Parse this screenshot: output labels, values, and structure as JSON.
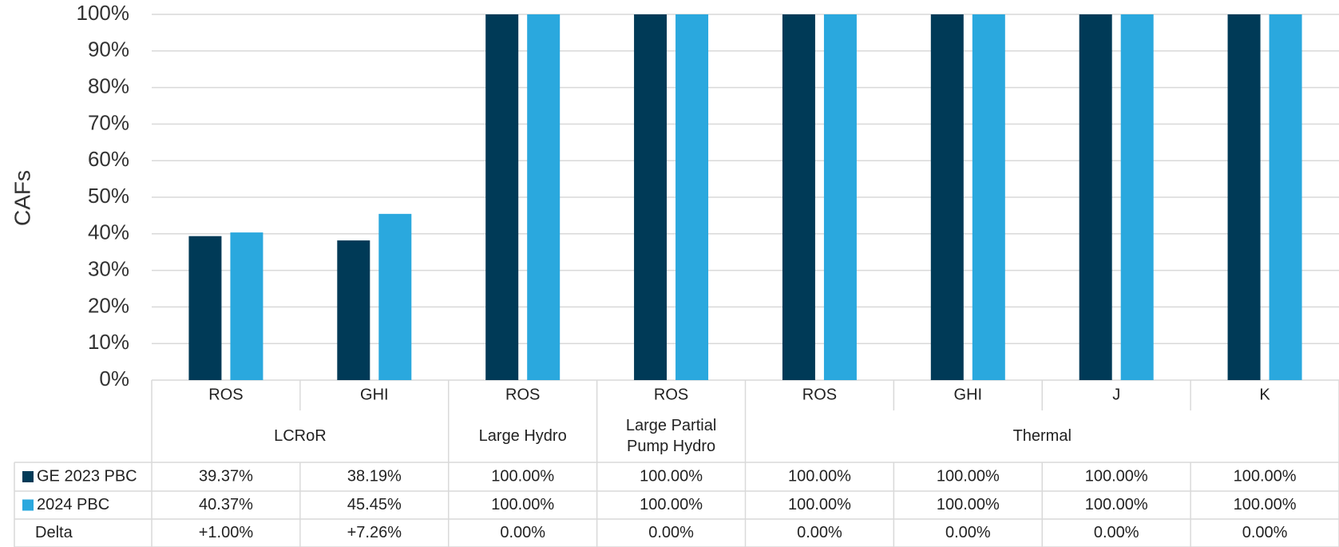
{
  "chart_data": {
    "type": "bar",
    "ylabel": "CAFs",
    "ylim": [
      0,
      100
    ],
    "yticks": [
      0,
      10,
      20,
      30,
      40,
      50,
      60,
      70,
      80,
      90,
      100
    ],
    "ytick_suffix": "%",
    "grid": true,
    "categories": [
      "ROS",
      "GHI",
      "ROS",
      "ROS",
      "ROS",
      "GHI",
      "J",
      "K"
    ],
    "groups": [
      {
        "label": "LCRoR",
        "span": 2
      },
      {
        "label": "Large Hydro",
        "span": 1
      },
      {
        "label": "Large Partial\nPump Hydro",
        "span": 1
      },
      {
        "label": "Thermal",
        "span": 4
      }
    ],
    "series": [
      {
        "name": "GE 2023 PBC",
        "color": "#003a57",
        "values": [
          39.37,
          38.19,
          100,
          100,
          100,
          100,
          100,
          100
        ],
        "table": [
          "39.37%",
          "38.19%",
          "100.00%",
          "100.00%",
          "100.00%",
          "100.00%",
          "100.00%",
          "100.00%"
        ]
      },
      {
        "name": "2024 PBC",
        "color": "#2aa8de",
        "values": [
          40.37,
          45.45,
          100,
          100,
          100,
          100,
          100,
          100
        ],
        "table": [
          "40.37%",
          "45.45%",
          "100.00%",
          "100.00%",
          "100.00%",
          "100.00%",
          "100.00%",
          "100.00%"
        ]
      }
    ],
    "table_rows": [
      {
        "name": "Delta",
        "table": [
          "+1.00%",
          "+7.26%",
          "0.00%",
          "0.00%",
          "0.00%",
          "0.00%",
          "0.00%",
          "0.00%"
        ]
      }
    ],
    "legend_placement": "data-table"
  }
}
